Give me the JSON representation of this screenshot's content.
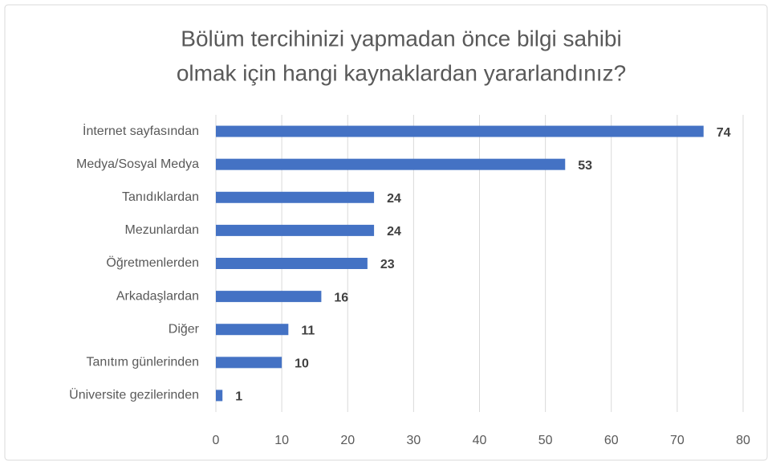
{
  "chart_data": {
    "type": "bar",
    "orientation": "horizontal",
    "title": [
      "Bölüm tercihinizi yapmadan önce bilgi sahibi",
      "olmak için hangi kaynaklardan yararlandınız?"
    ],
    "categories": [
      "İnternet sayfasından",
      "Medya/Sosyal Medya",
      "Tanıdıklardan",
      "Mezunlardan",
      "Öğretmenlerden",
      "Arkadaşlardan",
      "Diğer",
      "Tanıtım günlerinden",
      "Üniversite gezilerinden"
    ],
    "values": [
      74,
      53,
      24,
      24,
      23,
      16,
      11,
      10,
      1
    ],
    "color": "#4472c4",
    "xlim": [
      0,
      80
    ],
    "xticks": [
      0,
      10,
      20,
      30,
      40,
      50,
      60,
      70,
      80
    ],
    "grid": true
  }
}
